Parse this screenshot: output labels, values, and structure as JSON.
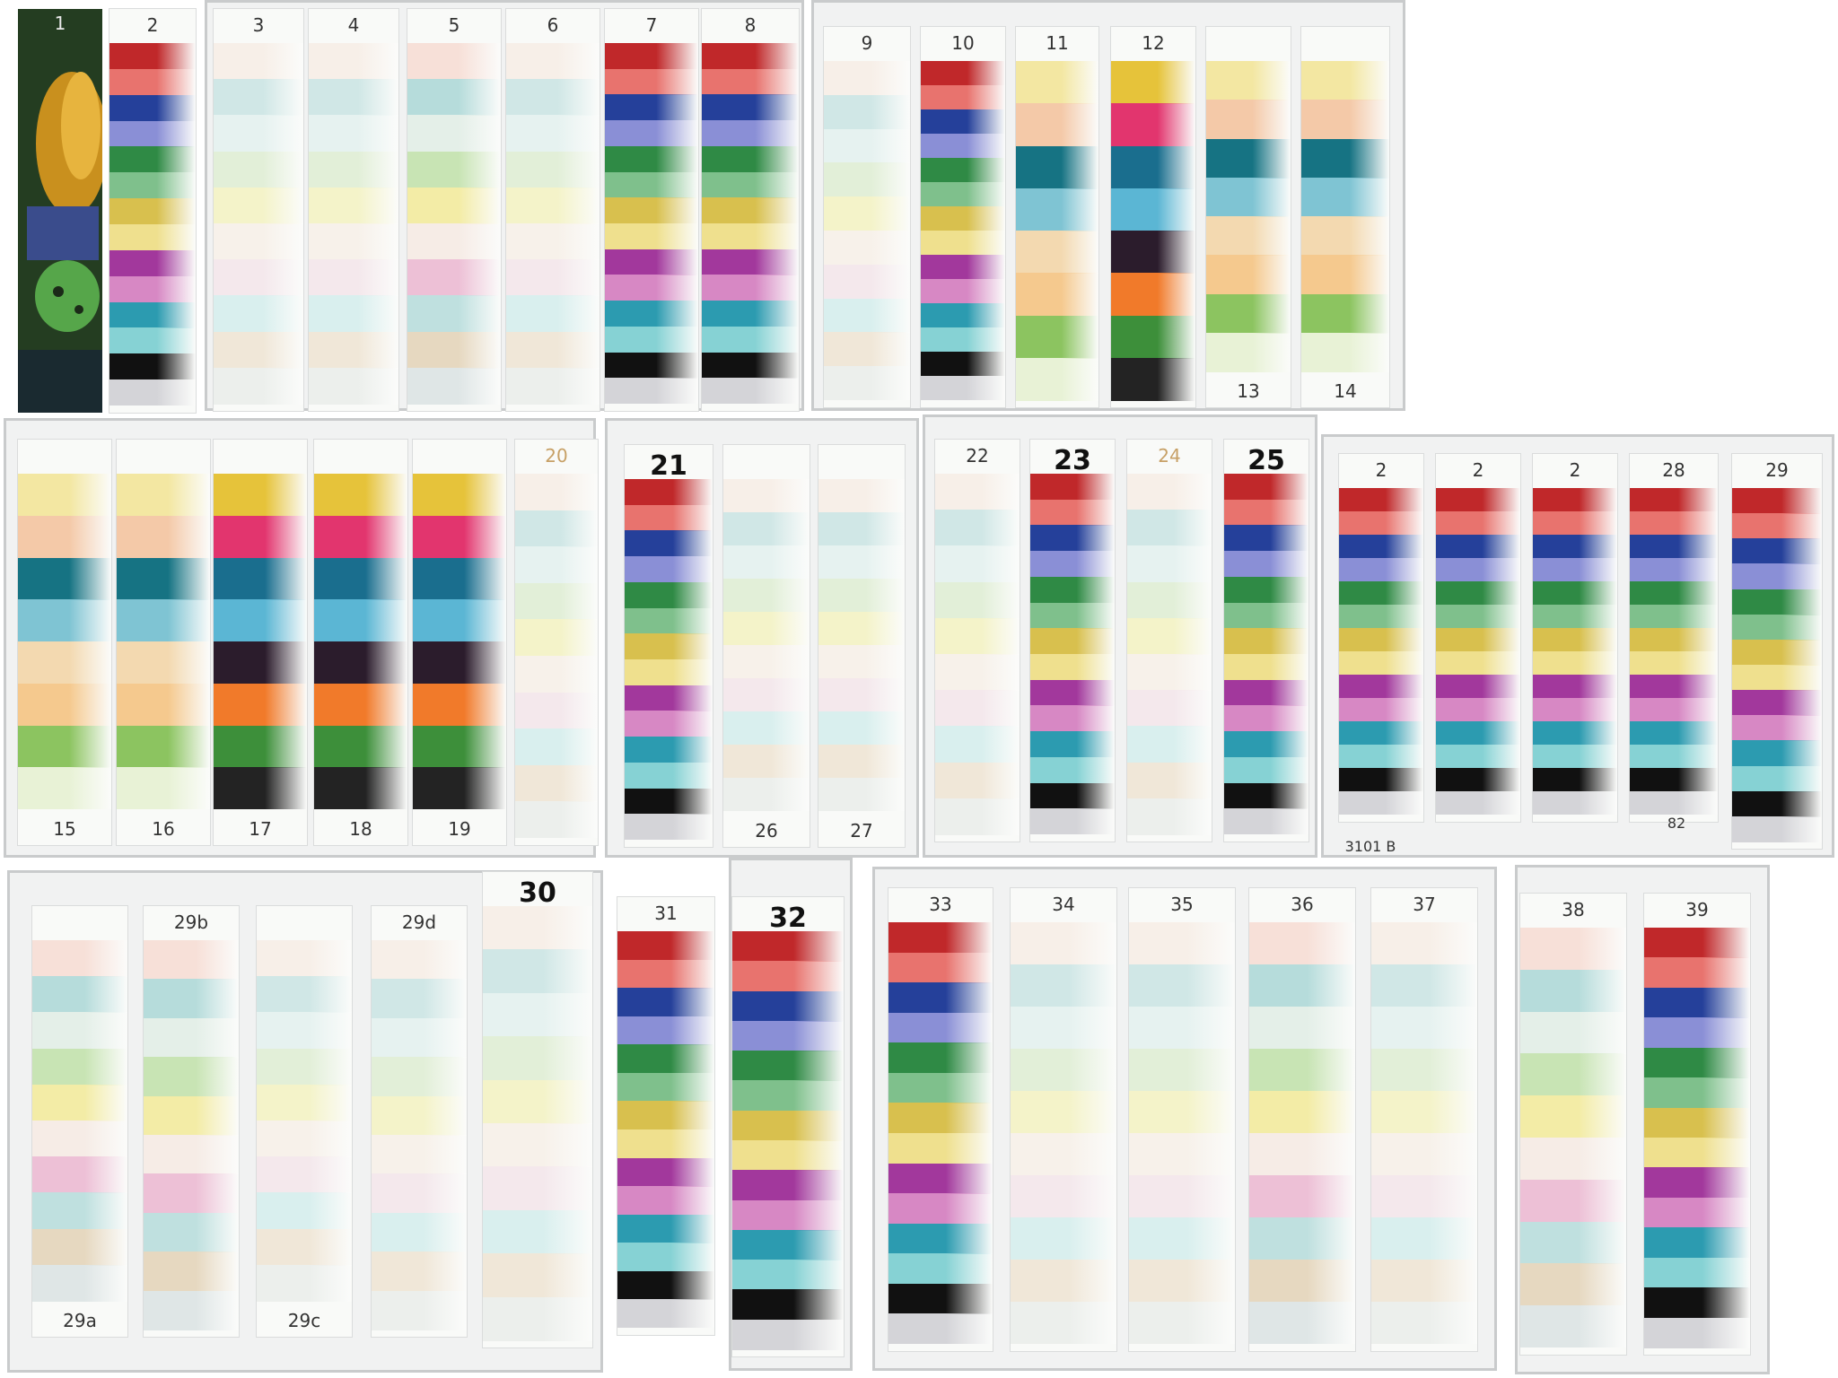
{
  "title": "",
  "palettes": {
    "full": [
      "#c0282a",
      "#e8736e",
      "#25409a",
      "#8a8fd6",
      "#2f8a45",
      "#7fc08c",
      "#d8c04e",
      "#efe08e",
      "#a2389c",
      "#d788c4",
      "#2c9bb0",
      "#86d2d4",
      "#111111",
      "#d4d4d8"
    ],
    "pale": [
      "#f7efe8",
      "#d0e7e6",
      "#e6f2f0",
      "#e2efd8",
      "#f4f3c9",
      "#f7f1ea",
      "#f4e8ec",
      "#d9efee",
      "#f0e7d8",
      "#ecefec"
    ],
    "pastel": [
      "#f7e0d8",
      "#b6dcdb",
      "#e4efe8",
      "#c8e4b4",
      "#f3eca6",
      "#f6ece6",
      "#edc0d6",
      "#bfe0df",
      "#e6d8c0",
      "#dfe6e6"
    ],
    "marker": [
      "#f3e7a2",
      "#f4c9a8",
      "#167383",
      "#7fc4d3",
      "#f3d9b0",
      "#f5c98e",
      "#8cc460",
      "#e8f2d6"
    ],
    "marker_bold": [
      "#e6c33a",
      "#e2356e",
      "#1a6e8e",
      "#5bb6d4",
      "#2b1c2c",
      "#f17a2a",
      "#3d8f3a",
      "#232323"
    ]
  },
  "strips": [
    {
      "id": "s1",
      "label": "1",
      "palette": "photo"
    },
    {
      "id": "s2",
      "label": "2",
      "palette": "full"
    },
    {
      "id": "s3",
      "label": "3",
      "palette": "pale"
    },
    {
      "id": "s4",
      "label": "4",
      "palette": "pale"
    },
    {
      "id": "s5",
      "label": "5",
      "palette": "pastel"
    },
    {
      "id": "s6",
      "label": "6",
      "palette": "pale"
    },
    {
      "id": "s7",
      "label": "7",
      "palette": "full"
    },
    {
      "id": "s8",
      "label": "8",
      "palette": "full"
    },
    {
      "id": "s9",
      "label": "9",
      "palette": "pale"
    },
    {
      "id": "s10",
      "label": "10",
      "palette": "full"
    },
    {
      "id": "s11",
      "label": "11",
      "palette": "marker"
    },
    {
      "id": "s12",
      "label": "12",
      "palette": "marker_bold"
    },
    {
      "id": "s13",
      "label": "13",
      "palette": "marker"
    },
    {
      "id": "s14",
      "label": "14",
      "palette": "marker"
    },
    {
      "id": "s15",
      "label": "15",
      "palette": "marker"
    },
    {
      "id": "s16",
      "label": "16",
      "palette": "marker"
    },
    {
      "id": "s17",
      "label": "17",
      "palette": "marker_bold"
    },
    {
      "id": "s18",
      "label": "18",
      "palette": "marker_bold"
    },
    {
      "id": "s19",
      "label": "19",
      "palette": "marker_bold"
    },
    {
      "id": "s20",
      "label": "20",
      "palette": "pale"
    },
    {
      "id": "s21",
      "label": "21",
      "palette": "full"
    },
    {
      "id": "s26",
      "label": "26",
      "palette": "pale"
    },
    {
      "id": "s27",
      "label": "27",
      "palette": "pale"
    },
    {
      "id": "s22",
      "label": "22",
      "palette": "pale"
    },
    {
      "id": "s23",
      "label": "23",
      "palette": "full"
    },
    {
      "id": "s24",
      "label": "24",
      "palette": "pale"
    },
    {
      "id": "s25",
      "label": "25",
      "palette": "full"
    },
    {
      "id": "s2a",
      "label": "2",
      "palette": "full"
    },
    {
      "id": "s2b",
      "label": "2",
      "palette": "full"
    },
    {
      "id": "s2c",
      "label": "2",
      "palette": "full"
    },
    {
      "id": "s28",
      "label": "28",
      "palette": "full"
    },
    {
      "id": "s29",
      "label": "29",
      "palette": "full"
    },
    {
      "id": "s29a",
      "label": "29a",
      "palette": "pastel"
    },
    {
      "id": "s29b",
      "label": "29b",
      "palette": "pastel"
    },
    {
      "id": "s29c",
      "label": "29c",
      "palette": "pale"
    },
    {
      "id": "s29d",
      "label": "29d",
      "palette": "pale"
    },
    {
      "id": "s30",
      "label": "30",
      "palette": "pale"
    },
    {
      "id": "s31",
      "label": "31",
      "palette": "full"
    },
    {
      "id": "s32",
      "label": "32",
      "palette": "full"
    },
    {
      "id": "s33",
      "label": "33",
      "palette": "full"
    },
    {
      "id": "s34",
      "label": "34",
      "palette": "pale"
    },
    {
      "id": "s35",
      "label": "35",
      "palette": "pale"
    },
    {
      "id": "s36",
      "label": "36",
      "palette": "pastel"
    },
    {
      "id": "s37",
      "label": "37",
      "palette": "pale"
    },
    {
      "id": "s38",
      "label": "38",
      "palette": "pastel"
    },
    {
      "id": "s39",
      "label": "39",
      "palette": "full"
    }
  ],
  "extra_labels": {
    "board_code": "3101 B",
    "s28_bottom": "82"
  }
}
